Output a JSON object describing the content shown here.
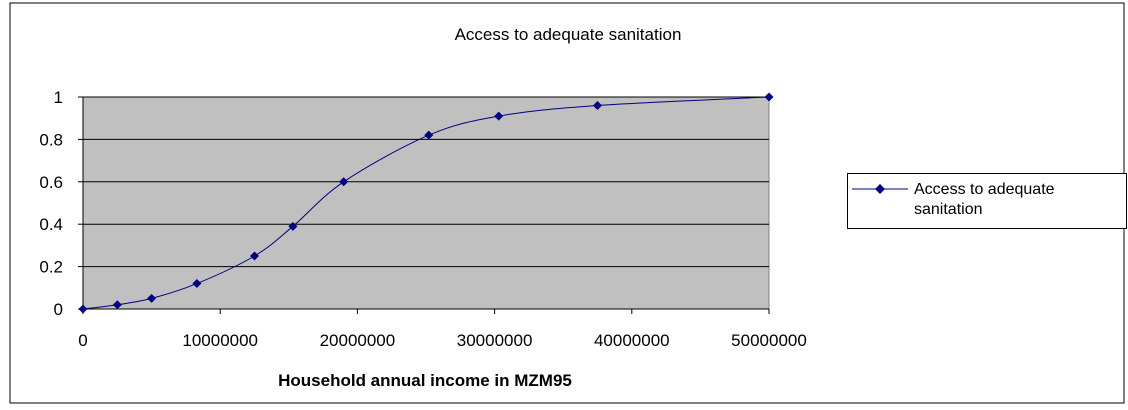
{
  "chart_data": {
    "type": "line",
    "title": "Access to adequate sanitation",
    "xlabel": "Household annual income in MZM95",
    "ylabel": "",
    "xlim": [
      0,
      50000000
    ],
    "ylim": [
      0,
      1
    ],
    "x_ticks": [
      "0",
      "10000000",
      "20000000",
      "30000000",
      "40000000",
      "50000000"
    ],
    "y_ticks": [
      "0",
      "0.2",
      "0.4",
      "0.6",
      "0.8",
      "1"
    ],
    "grid": "horizontal",
    "legend_position": "right",
    "plot_background": "#c0c0c0",
    "series": [
      {
        "name": "Access to adequate sanitation",
        "color": "#000080",
        "marker": "diamond",
        "smooth": true,
        "x": [
          0,
          2500000,
          5000000,
          8300000,
          12500000,
          15300000,
          19000000,
          25200000,
          30300000,
          37500000,
          50000000
        ],
        "y": [
          0,
          0.02,
          0.05,
          0.12,
          0.25,
          0.39,
          0.6,
          0.82,
          0.91,
          0.96,
          1.0
        ]
      }
    ]
  }
}
